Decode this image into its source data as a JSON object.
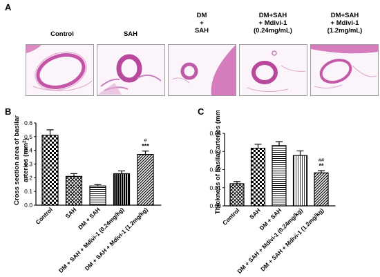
{
  "panel_a": {
    "letter": "A",
    "columns": [
      "Control",
      "SAH",
      "DM\n+\nSAH",
      "DM+SAH\n+ Mdivi-1\n(0.24mg/mL)",
      "DM+SAH\n+ Mdivi-1\n(1.2mg/mL)"
    ]
  },
  "chart_data": [
    {
      "panel": "B",
      "type": "bar",
      "ylabel_line1": "Cross section area of basilar",
      "ylabel_line2": "arteries (mm",
      "ylabel_sup": "2",
      "ylabel_end": ")",
      "ylim": [
        0,
        0.6
      ],
      "yticks": [
        "0.0",
        "0.1",
        "0.2",
        "0.3",
        "0.4",
        "0.5",
        "0.6"
      ],
      "categories": [
        "Control",
        "SAH",
        "DM + SAH",
        "DM + SAH + Mdivi-1 (0.24mg/kg)",
        "DM + SAH + Mdivi-1 (1.2mg/kg)"
      ],
      "values": [
        0.51,
        0.21,
        0.14,
        0.23,
        0.37
      ],
      "errors": [
        0.04,
        0.02,
        0.01,
        0.02,
        0.025
      ],
      "annotations": [
        "",
        "",
        "",
        "",
        "***"
      ],
      "annotations_top": [
        "",
        "",
        "",
        "",
        "#"
      ]
    },
    {
      "panel": "C",
      "type": "bar",
      "ylabel_line1": "Thickness of basilar arteries (mm)",
      "ylim": [
        0,
        0.04
      ],
      "yticks": [
        "0.00",
        "0.01",
        "0.02",
        "0.03",
        "0.04"
      ],
      "categories": [
        "Control",
        "SAH",
        "DM + SAH",
        "DM + SAH + Mdivi-1 (0.24mg/kg)",
        "DM + SAH + Mdivi-1 (1.2mg/kg)"
      ],
      "values": [
        0.0122,
        0.0318,
        0.0332,
        0.0278,
        0.0182
      ],
      "errors": [
        0.0012,
        0.0022,
        0.0022,
        0.0025,
        0.0012
      ],
      "annotations": [
        "",
        "",
        "",
        "",
        "**"
      ],
      "annotations_top": [
        "",
        "",
        "",
        "",
        "##"
      ]
    }
  ],
  "panel_b_letter": "B",
  "panel_c_letter": "C"
}
